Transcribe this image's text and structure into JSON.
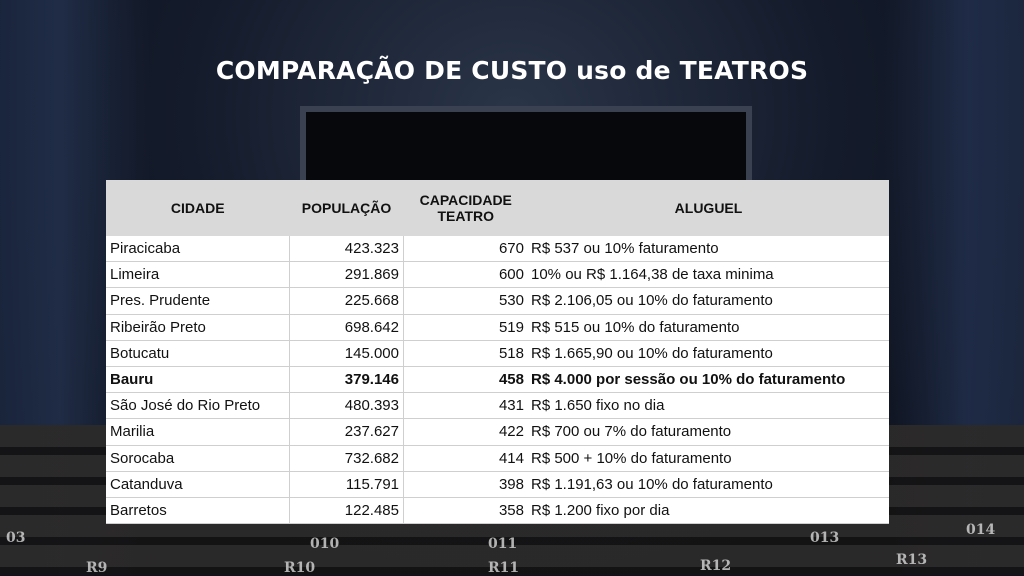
{
  "title": "COMPARAÇÃO DE CUSTO uso de TEATROS",
  "headers": {
    "city": "CIDADE",
    "population": "POPULAÇÃO",
    "capacity_line1": "CAPACIDADE",
    "capacity_line2": "TEATRO",
    "rent": "ALUGUEL"
  },
  "rows": [
    {
      "city": "Piracicaba",
      "population": "423.323",
      "capacity": "670",
      "rent": "R$ 537 ou 10% faturamento",
      "bold": false
    },
    {
      "city": "Limeira",
      "population": "291.869",
      "capacity": "600",
      "rent": "10% ou R$ 1.164,38 de taxa minima",
      "bold": false
    },
    {
      "city": "Pres. Prudente",
      "population": "225.668",
      "capacity": "530",
      "rent": "R$ 2.106,05 ou 10% do faturamento",
      "bold": false
    },
    {
      "city": "Ribeirão Preto",
      "population": "698.642",
      "capacity": "519",
      "rent": "R$ 515 ou 10% do faturamento",
      "bold": false
    },
    {
      "city": "Botucatu",
      "population": "145.000",
      "capacity": "518",
      "rent": "R$ 1.665,90 ou 10% do faturamento",
      "bold": false
    },
    {
      "city": "Bauru",
      "population": "379.146",
      "capacity": "458",
      "rent": "R$ 4.000 por sessão ou 10% do faturamento",
      "bold": true
    },
    {
      "city": "São José do Rio Preto",
      "population": "480.393",
      "capacity": "431",
      "rent": "R$ 1.650 fixo no dia",
      "bold": false
    },
    {
      "city": "Marilia",
      "population": "237.627",
      "capacity": "422",
      "rent": "R$ 700 ou 7% do faturamento",
      "bold": false
    },
    {
      "city": "Sorocaba",
      "population": "732.682",
      "capacity": "414",
      "rent": "R$ 500 + 10% do faturamento",
      "bold": false
    },
    {
      "city": "Catanduva",
      "population": "115.791",
      "capacity": "398",
      "rent": "R$ 1.191,63 ou 10% do faturamento",
      "bold": false
    },
    {
      "city": "Barretos",
      "population": "122.485",
      "capacity": "358",
      "rent": "R$ 1.200 fixo por dia",
      "bold": false
    }
  ],
  "seat_labels": [
    "03",
    "010",
    "011",
    "013",
    "014",
    "R9",
    "R10",
    "R11",
    "R12",
    "R13"
  ]
}
